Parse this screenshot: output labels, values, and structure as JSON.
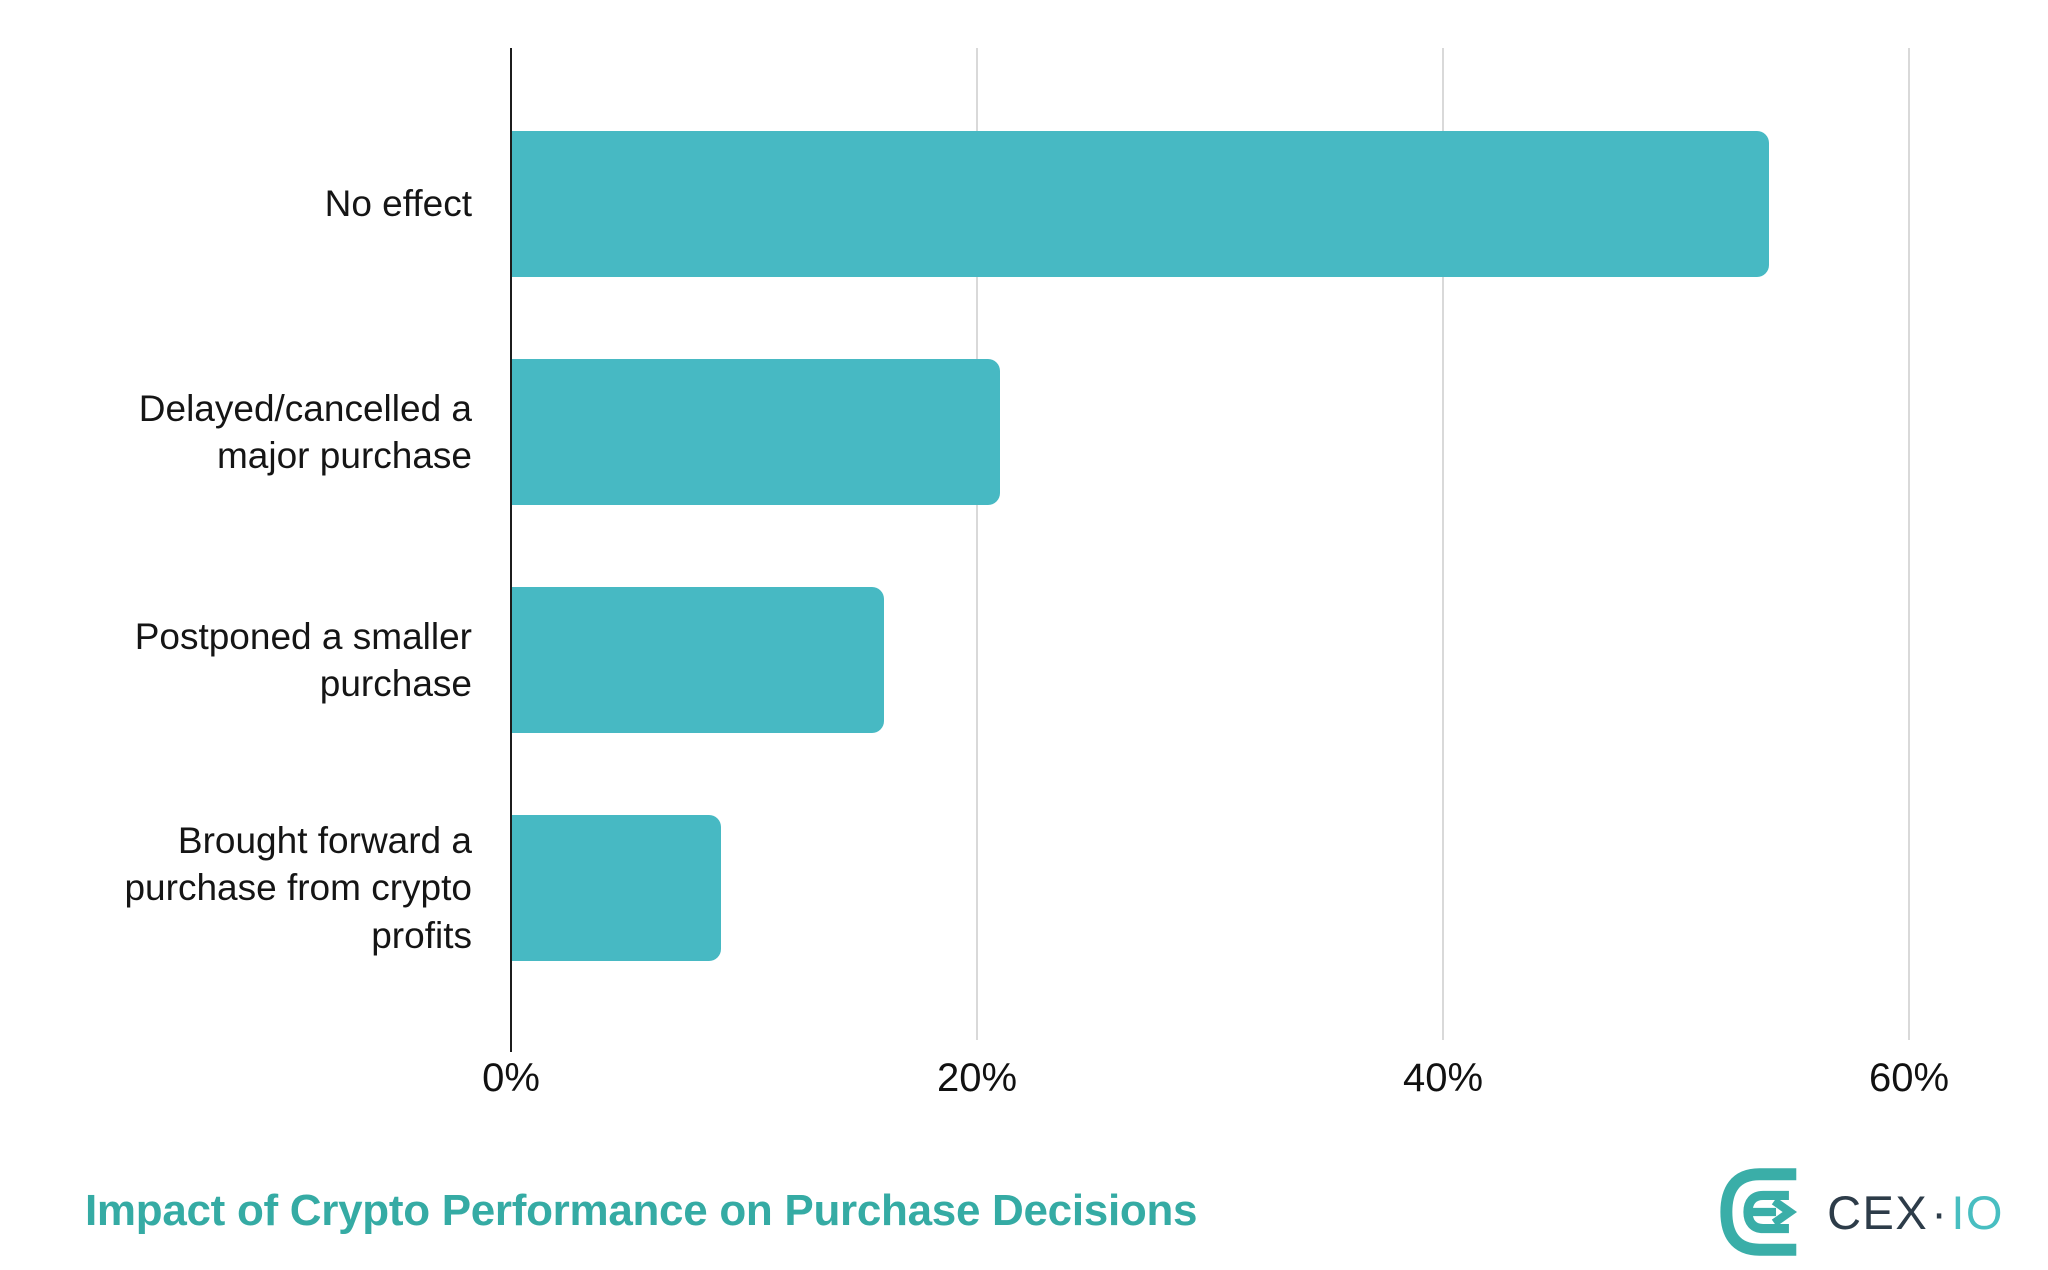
{
  "chart_data": {
    "type": "bar",
    "orientation": "horizontal",
    "title": "Impact of Crypto Performance on Purchase Decisions",
    "categories": [
      "No effect",
      "Delayed/cancelled a major purchase",
      "Postponed a smaller purchase",
      "Brought forward a purchase from crypto profits"
    ],
    "values": [
      54,
      21,
      16,
      9
    ],
    "unit": "%",
    "bar_color": "#47b9c3",
    "grid": true,
    "legend_position": "none",
    "x_axis": {
      "ticks": [
        0,
        20,
        40,
        60
      ],
      "tick_labels": [
        "0%",
        "20%",
        "40%",
        "60%"
      ],
      "range": [
        0,
        64.7
      ]
    }
  },
  "footer": {
    "title": "Impact of Crypto Performance on Purchase Decisions",
    "title_color": "#35aba4"
  },
  "logo": {
    "brand": "CEX.IO",
    "text_primary": "CEX",
    "separator": "·",
    "text_secondary": "IO",
    "mark_color": "#3aaea8",
    "text_primary_color": "#2d3c49",
    "text_secondary_color": "#48bec1"
  }
}
